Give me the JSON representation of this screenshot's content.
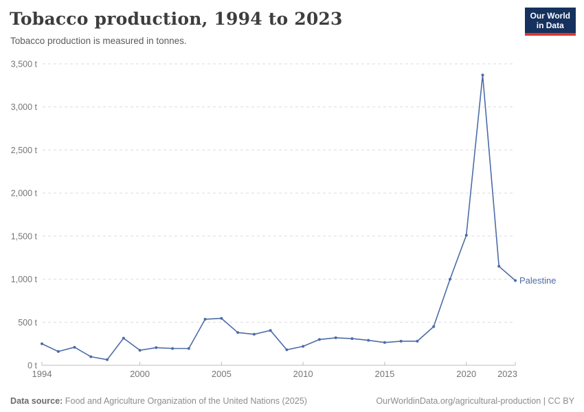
{
  "header": {
    "title": "Tobacco production, 1994 to 2023",
    "subtitle": "Tobacco production is measured in tonnes.",
    "logo": {
      "line1": "Our World",
      "line2": "in Data"
    }
  },
  "chart_data": {
    "type": "line",
    "title": "Tobacco production, 1994 to 2023",
    "xlabel": "",
    "ylabel": "tonnes",
    "xlim": [
      1994,
      2023
    ],
    "ylim": [
      0,
      3500
    ],
    "x_ticks": [
      1994,
      2000,
      2005,
      2010,
      2015,
      2020,
      2023
    ],
    "y_ticks": [
      0,
      500,
      1000,
      1500,
      2000,
      2500,
      3000,
      3500
    ],
    "y_tick_suffix": " t",
    "grid": "horizontal-dashed",
    "legend_position": "end-of-line-label",
    "series": [
      {
        "name": "Palestine",
        "color": "#4C6BA6",
        "x": [
          1994,
          1995,
          1996,
          1997,
          1998,
          1999,
          2000,
          2001,
          2002,
          2003,
          2004,
          2005,
          2006,
          2007,
          2008,
          2009,
          2010,
          2011,
          2012,
          2013,
          2014,
          2015,
          2016,
          2017,
          2018,
          2019,
          2020,
          2021,
          2022,
          2023
        ],
        "values": [
          250,
          160,
          210,
          100,
          65,
          315,
          175,
          205,
          195,
          195,
          535,
          545,
          380,
          360,
          405,
          180,
          220,
          300,
          320,
          310,
          290,
          265,
          280,
          280,
          450,
          1000,
          1510,
          3370,
          1150,
          985
        ]
      }
    ]
  },
  "footer": {
    "source_label": "Data source:",
    "source_text": "Food and Agriculture Organization of the United Nations (2025)",
    "link_text": "OurWorldinData.org/agricultural-production | CC BY"
  },
  "colors": {
    "line": "#4C6BA6",
    "grid": "#DBDBDB",
    "axis": "#BDBDBD",
    "tick_text": "#757575",
    "title_text": "#3D3D3D",
    "subtitle_text": "#5A5A5A",
    "footer_text": "#8C8C8C",
    "footer_bold": "#6B6B6B",
    "logo_bg": "#15315E",
    "logo_accent": "#DC3832"
  }
}
